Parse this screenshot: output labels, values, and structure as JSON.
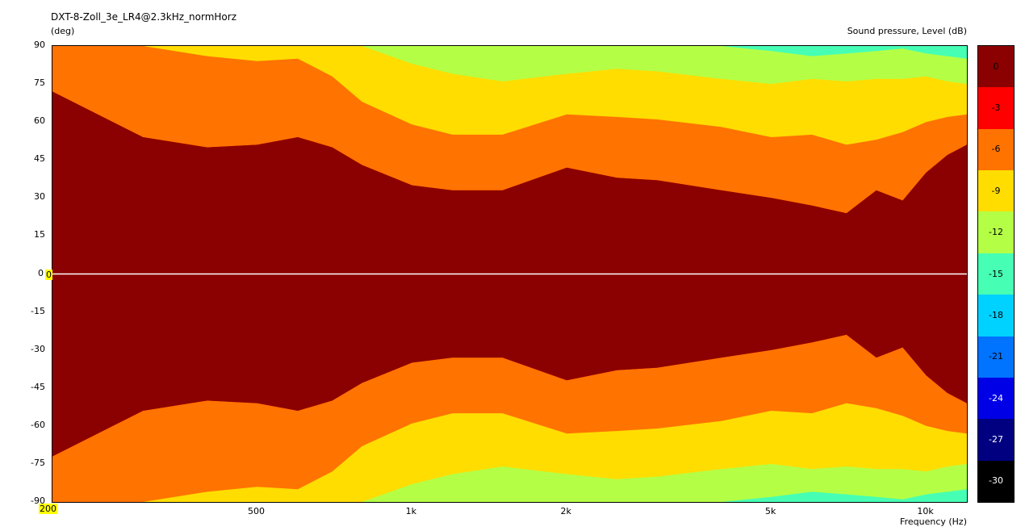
{
  "header": {
    "title": "DXT-8-Zoll_3e_LR4@2.3kHz_normHorz",
    "y_unit": "(deg)",
    "scale_title": "Sound pressure, Level  (dB)",
    "x_title": "Frequency  (Hz)"
  },
  "chart_data": {
    "type": "heatmap",
    "title": "DXT-8-Zoll_3e_LR4@2.3kHz_normHorz",
    "xlabel": "Frequency  (Hz)",
    "ylabel": "(deg)",
    "colorbar_label": "Sound pressure, Level  (dB)",
    "x_scale": "log",
    "xlim": [
      200,
      12000
    ],
    "ylim": [
      -90,
      90
    ],
    "x_tick_labels": [
      "200",
      "500",
      "1k",
      "2k",
      "5k",
      "10k"
    ],
    "x_tick_values": [
      200,
      500,
      1000,
      2000,
      5000,
      10000
    ],
    "y_ticks": [
      90,
      75,
      60,
      45,
      30,
      15,
      0,
      -15,
      -30,
      -45,
      -60,
      -75,
      -90
    ],
    "levels": [
      0,
      -3,
      -6,
      -9,
      -12,
      -15,
      -18,
      -21,
      -24,
      -27,
      -30
    ],
    "level_colors": [
      "#8b0000",
      "#ff0000",
      "#ff7300",
      "#ffdd00",
      "#b4ff46",
      "#46ffb4",
      "#00d2ff",
      "#0073ff",
      "#0000e6",
      "#000080",
      "#000000"
    ],
    "contours_deg": {
      "freq_hz": [
        200,
        300,
        400,
        500,
        600,
        700,
        800,
        1000,
        1200,
        1500,
        2000,
        2500,
        3000,
        4000,
        5000,
        6000,
        7000,
        8000,
        9000,
        10000,
        11000,
        12000
      ],
      "minus3dB": [
        72,
        54,
        50,
        51,
        54,
        50,
        43,
        35,
        33,
        33,
        42,
        38,
        37,
        33,
        30,
        27,
        24,
        33,
        29,
        40,
        47,
        51
      ],
      "minus6dB": [
        90,
        90,
        86,
        84,
        85,
        78,
        68,
        59,
        55,
        55,
        63,
        62,
        61,
        58,
        54,
        55,
        51,
        53,
        56,
        60,
        62,
        63
      ],
      "minus9dB": [
        90,
        90,
        90,
        90,
        90,
        90,
        90,
        83,
        79,
        76,
        79,
        81,
        80,
        77,
        75,
        77,
        76,
        77,
        77,
        78,
        76,
        75
      ],
      "minus12dB": [
        90,
        90,
        90,
        90,
        90,
        90,
        90,
        90,
        90,
        90,
        90,
        90,
        90,
        90,
        88,
        86,
        87,
        88,
        89,
        87,
        86,
        85
      ]
    }
  },
  "axis_markers": {
    "origin_y": "0",
    "origin_x": "200"
  }
}
